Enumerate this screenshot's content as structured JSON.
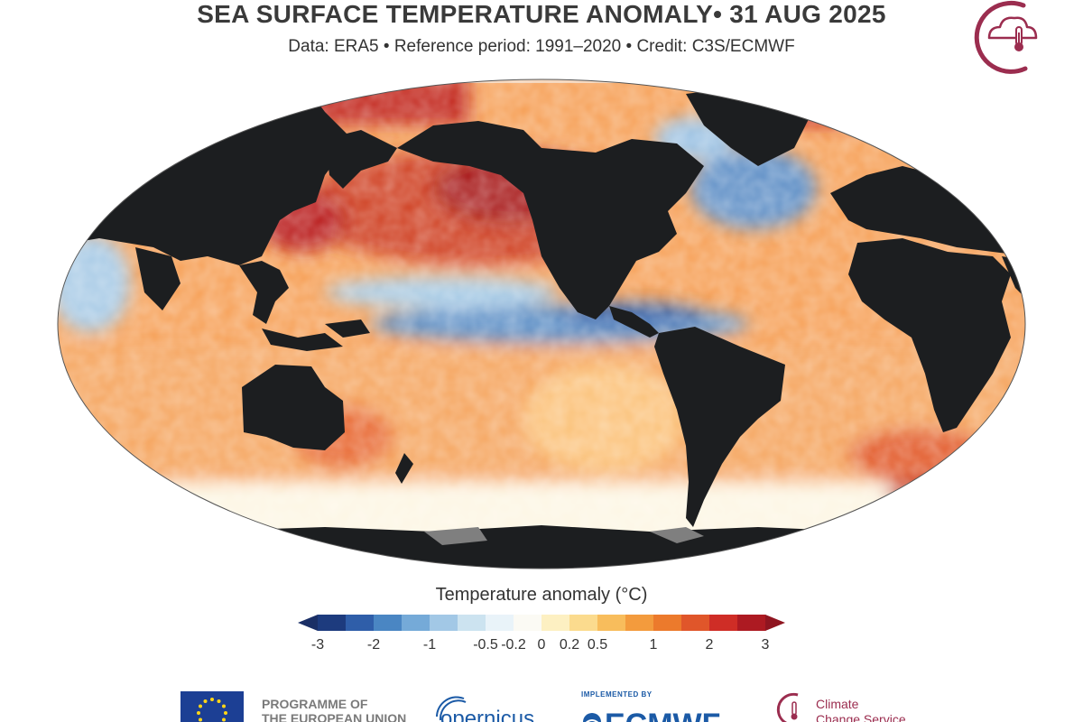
{
  "header": {
    "title": "SEA SURFACE TEMPERATURE ANOMALY• 31 AUG 2025",
    "subtitle": "Data: ERA5 • Reference period: 1991–2020 • Credit: C3S/ECMWF"
  },
  "legend": {
    "title": "Temperature anomaly (°C)",
    "ticks": [
      "-3",
      "-2",
      "-1",
      "-0.5",
      "-0.2",
      "0",
      "0.2",
      "0.5",
      "1",
      "2",
      "3"
    ],
    "colors": [
      "#1d3b7e",
      "#2f5ea9",
      "#4a86c3",
      "#75aad8",
      "#a2c8e6",
      "#cce3f0",
      "#e9f3f9",
      "#fbfaf4",
      "#fdf0c2",
      "#fbdb8e",
      "#f8bd5c",
      "#f39b3d",
      "#ec7a2c",
      "#e0562a",
      "#cf2d26",
      "#ad1a22"
    ],
    "end_low_color": "#1a2f66",
    "end_high_color": "#8f1520"
  },
  "map": {
    "land_color": "#1c1e20",
    "ice_color": "#7f7f7f",
    "ocean_base_color": "#f6a057"
  },
  "footer": {
    "eu_text": [
      "PROGRAMME OF",
      "THE EUROPEAN UNION"
    ],
    "copernicus_text": "opernicus",
    "ecmwf_impl": "IMPLEMENTED BY",
    "ecmwf_text": "ECMWF",
    "ccs_text": [
      "Climate",
      "Change Service"
    ]
  },
  "logos": {
    "accent_color": "#9b2d4f"
  }
}
